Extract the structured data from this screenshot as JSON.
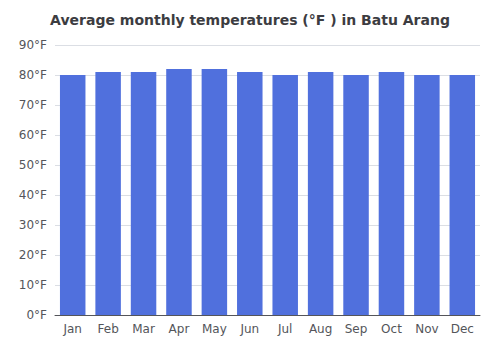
{
  "chart_data": {
    "type": "bar",
    "title": "Average monthly temperatures (°F ) in Batu Arang",
    "categories": [
      "Jan",
      "Feb",
      "Mar",
      "Apr",
      "May",
      "Jun",
      "Jul",
      "Aug",
      "Sep",
      "Oct",
      "Nov",
      "Dec"
    ],
    "values": [
      80,
      81,
      81,
      82,
      82,
      81,
      80,
      81,
      80,
      81,
      80,
      80
    ],
    "ylim": [
      0,
      90
    ],
    "yticks": [
      {
        "value": 0,
        "label": "0°F"
      },
      {
        "value": 10,
        "label": "10°F"
      },
      {
        "value": 20,
        "label": "20°F"
      },
      {
        "value": 30,
        "label": "30°F"
      },
      {
        "value": 40,
        "label": "40°F"
      },
      {
        "value": 50,
        "label": "50°F"
      },
      {
        "value": 60,
        "label": "60°F"
      },
      {
        "value": 70,
        "label": "70°F"
      },
      {
        "value": 80,
        "label": "80°F"
      },
      {
        "value": 90,
        "label": "90°F"
      }
    ],
    "grid": true
  }
}
